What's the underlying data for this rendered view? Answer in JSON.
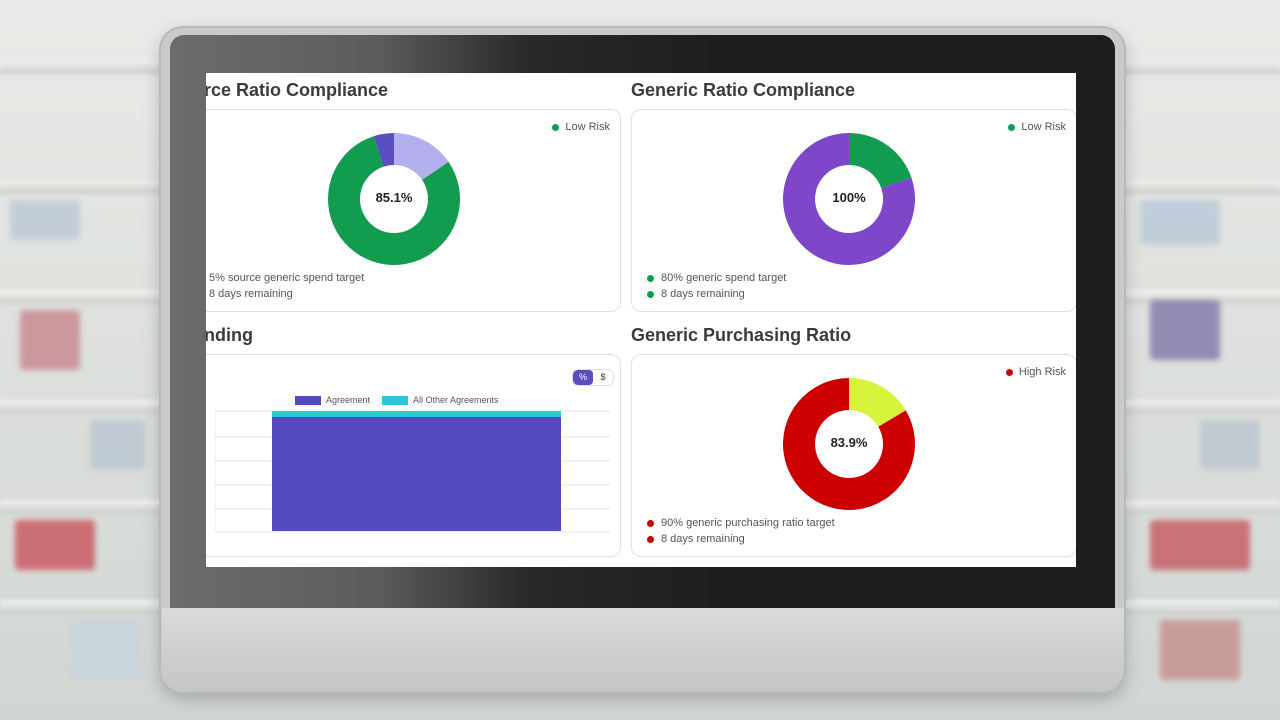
{
  "panels": {
    "top_left": {
      "title": "rce Ratio Compliance",
      "risk_label": "Low Risk",
      "center_value": "85.1%",
      "notes": [
        "5% source generic spend target",
        "8 days remaining"
      ],
      "colors": {
        "main": "#119c4f",
        "secondary": "#b4b0ee",
        "tertiary": "#5a4fc0"
      }
    },
    "top_right": {
      "title": "Generic Ratio Compliance",
      "risk_label": "Low Risk",
      "center_value": "100%",
      "notes": [
        "80% generic spend target",
        "8 days remaining"
      ],
      "colors": {
        "main": "#7e46c9",
        "secondary": "#119c4f"
      }
    },
    "bottom_left": {
      "title": "nding",
      "toggle": {
        "percent": "%",
        "dollar": "$"
      },
      "legend": [
        {
          "label": "Agreement",
          "color": "#534bbd"
        },
        {
          "label": "All Other Agreements",
          "color": "#2bc9d4"
        }
      ]
    },
    "bottom_right": {
      "title": "Generic Purchasing Ratio",
      "risk_label": "High Risk",
      "center_value": "83.9%",
      "notes": [
        "90% generic purchasing ratio target",
        "8 days remaining"
      ],
      "colors": {
        "main": "#cc0000",
        "secondary": "#d7f33b"
      }
    }
  },
  "status_colors": {
    "low": "#119c4f",
    "high": "#cc0000"
  }
}
